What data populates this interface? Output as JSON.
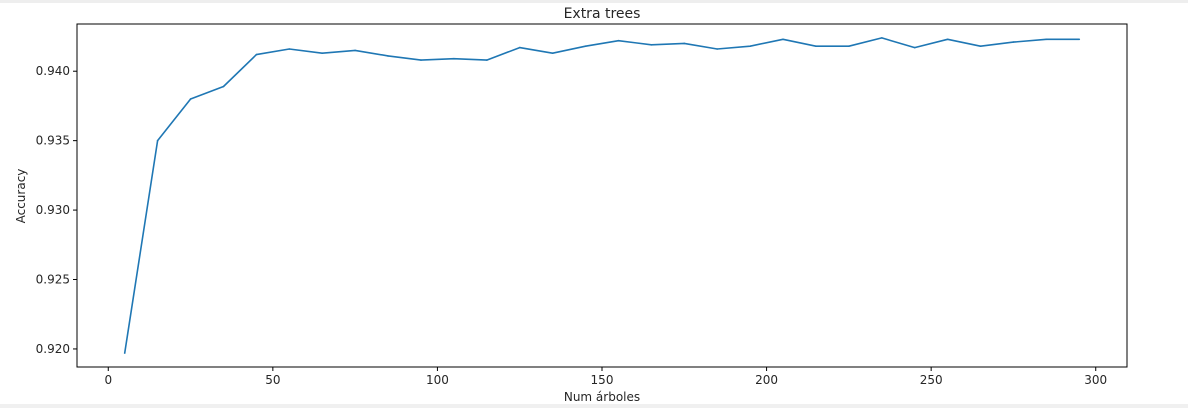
{
  "chart_data": {
    "type": "line",
    "title": "Extra trees",
    "xlabel": "Num árboles",
    "ylabel": "Accuracy",
    "xlim": [
      -9.5,
      309.5
    ],
    "ylim": [
      0.9187,
      0.9434
    ],
    "x_ticks": [
      0,
      50,
      100,
      150,
      200,
      250,
      300
    ],
    "x_tick_labels": [
      "0",
      "50",
      "100",
      "150",
      "200",
      "250",
      "300"
    ],
    "y_ticks": [
      0.92,
      0.925,
      0.93,
      0.935,
      0.94
    ],
    "y_tick_labels": [
      "0.920",
      "0.925",
      "0.930",
      "0.935",
      "0.940"
    ],
    "grid": false,
    "series": [
      {
        "color": "#1f77b4",
        "x": [
          5,
          15,
          25,
          35,
          45,
          55,
          65,
          75,
          85,
          95,
          105,
          115,
          125,
          135,
          145,
          155,
          165,
          175,
          185,
          195,
          205,
          215,
          225,
          235,
          245,
          255,
          265,
          275,
          285,
          295
        ],
        "y": [
          0.9197,
          0.935,
          0.938,
          0.9389,
          0.9412,
          0.9416,
          0.9413,
          0.9415,
          0.9411,
          0.9408,
          0.9409,
          0.9408,
          0.9417,
          0.9413,
          0.9418,
          0.9422,
          0.9419,
          0.942,
          0.9416,
          0.9418,
          0.9423,
          0.9418,
          0.9418,
          0.9424,
          0.9417,
          0.9423,
          0.9418,
          0.9421,
          0.9423,
          0.9423
        ]
      }
    ]
  }
}
